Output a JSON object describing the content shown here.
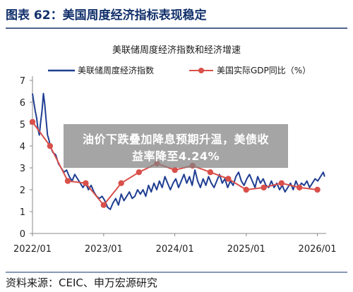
{
  "figure": {
    "title": "图表 62：美国周度经济指标表现稳定",
    "source": "资料来源：CEIC、申万宏源研究",
    "colors": {
      "title_bar": "#12306b",
      "line_wei": "#1f3e92",
      "line_gdp": "#d9504a",
      "axis": "#888888"
    }
  },
  "overlay": {
    "line1": "油价下跌叠加降息预期升温，美债收",
    "line2": "益率降至4.24%"
  },
  "chart_data": {
    "type": "line",
    "title": "美联储周度经济指数和经济增速",
    "xlabel": "",
    "ylabel": "",
    "xlim": [
      "2022-01-01",
      "2026-02-15"
    ],
    "ylim": [
      0,
      7
    ],
    "yticks": [
      0,
      1,
      2,
      3,
      4,
      5,
      6,
      7
    ],
    "xticks": [
      {
        "value": "2022-01-01",
        "label": "2022/01"
      },
      {
        "value": "2023-01-01",
        "label": "2023/01"
      },
      {
        "value": "2024-01-01",
        "label": "2024/01"
      },
      {
        "value": "2025-01-01",
        "label": "2025/01"
      },
      {
        "value": "2026-01-01",
        "label": "2026/01"
      }
    ],
    "grid": false,
    "legend_position": "top",
    "series": [
      {
        "name": "美联储周度经济指数",
        "style": "line",
        "color": "#1f3e92",
        "x": [
          "2022-01-01",
          "2022-01-08",
          "2022-01-15",
          "2022-01-22",
          "2022-01-29",
          "2022-02-05",
          "2022-02-12",
          "2022-02-19",
          "2022-02-26",
          "2022-03-05",
          "2022-03-12",
          "2022-03-19",
          "2022-03-26",
          "2022-04-02",
          "2022-04-16",
          "2022-04-30",
          "2022-05-14",
          "2022-05-28",
          "2022-06-11",
          "2022-06-25",
          "2022-07-09",
          "2022-07-23",
          "2022-08-06",
          "2022-08-20",
          "2022-09-03",
          "2022-09-17",
          "2022-10-01",
          "2022-10-15",
          "2022-10-29",
          "2022-11-12",
          "2022-11-26",
          "2022-12-10",
          "2022-12-24",
          "2023-01-07",
          "2023-01-21",
          "2023-02-04",
          "2023-02-18",
          "2023-03-04",
          "2023-03-18",
          "2023-04-01",
          "2023-04-15",
          "2023-04-29",
          "2023-05-13",
          "2023-05-27",
          "2023-06-10",
          "2023-06-24",
          "2023-07-08",
          "2023-07-22",
          "2023-08-05",
          "2023-08-19",
          "2023-09-02",
          "2023-09-16",
          "2023-09-30",
          "2023-10-14",
          "2023-10-28",
          "2023-11-11",
          "2023-11-25",
          "2023-12-09",
          "2023-12-23",
          "2024-01-06",
          "2024-01-20",
          "2024-02-03",
          "2024-02-17",
          "2024-03-02",
          "2024-03-16",
          "2024-03-30",
          "2024-04-13",
          "2024-04-27",
          "2024-05-11",
          "2024-05-25",
          "2024-06-08",
          "2024-06-22",
          "2024-07-06",
          "2024-07-20",
          "2024-08-03",
          "2024-08-17",
          "2024-08-31",
          "2024-09-14",
          "2024-09-28",
          "2024-10-12",
          "2024-10-26",
          "2024-11-09",
          "2024-11-23",
          "2024-12-07",
          "2024-12-21",
          "2025-01-04",
          "2025-01-18",
          "2025-02-01",
          "2025-02-15",
          "2025-03-01",
          "2025-03-15",
          "2025-03-29",
          "2025-04-12",
          "2025-04-26",
          "2025-05-10",
          "2025-05-24",
          "2025-06-07",
          "2025-06-21",
          "2025-07-05",
          "2025-07-19",
          "2025-08-02",
          "2025-08-16",
          "2025-08-30",
          "2025-09-13",
          "2025-09-27",
          "2025-10-11",
          "2025-10-25",
          "2025-11-08",
          "2025-11-22",
          "2025-12-06",
          "2025-12-20",
          "2026-01-03",
          "2026-01-17",
          "2026-01-31",
          "2026-02-07"
        ],
        "values": [
          6.4,
          6.0,
          5.6,
          5.3,
          4.8,
          4.5,
          5.1,
          5.6,
          6.4,
          5.9,
          5.2,
          4.5,
          4.3,
          4.0,
          3.7,
          3.6,
          3.2,
          3.0,
          2.8,
          2.9,
          2.6,
          2.4,
          2.7,
          2.5,
          2.3,
          2.1,
          2.3,
          2.0,
          2.2,
          1.9,
          1.7,
          1.6,
          1.7,
          1.5,
          1.2,
          1.1,
          1.4,
          1.6,
          1.3,
          1.8,
          1.5,
          1.7,
          1.9,
          1.6,
          1.7,
          2.0,
          1.8,
          2.0,
          1.7,
          2.2,
          1.9,
          2.3,
          2.0,
          2.4,
          2.1,
          2.6,
          2.3,
          2.0,
          2.3,
          2.5,
          2.1,
          2.4,
          2.7,
          2.3,
          2.6,
          2.2,
          2.9,
          2.4,
          2.1,
          2.5,
          2.2,
          2.6,
          2.3,
          2.1,
          2.4,
          2.7,
          2.3,
          2.5,
          2.1,
          2.4,
          2.2,
          2.6,
          2.8,
          2.4,
          2.2,
          2.5,
          2.7,
          2.4,
          2.1,
          2.6,
          2.3,
          2.5,
          2.2,
          2.1,
          2.4,
          2.1,
          2.3,
          2.0,
          2.2,
          1.9,
          2.1,
          2.3,
          2.0,
          2.4,
          2.1,
          2.3,
          2.2,
          2.4,
          2.1,
          2.3,
          2.5,
          2.4,
          2.6,
          2.8,
          2.6
        ]
      },
      {
        "name": "美国实际GDP同比（%）",
        "style": "line-marker",
        "color": "#d9504a",
        "x": [
          "2022-01-01",
          "2022-04-01",
          "2022-07-01",
          "2022-10-01",
          "2023-01-01",
          "2023-04-01",
          "2023-07-01",
          "2023-10-01",
          "2024-01-01",
          "2024-04-01",
          "2024-07-01",
          "2024-10-01",
          "2025-01-01",
          "2025-04-01",
          "2025-07-01",
          "2025-10-01",
          "2026-01-01"
        ],
        "values": [
          5.1,
          4.0,
          2.4,
          2.3,
          1.3,
          2.3,
          2.8,
          3.2,
          2.9,
          3.1,
          2.8,
          2.5,
          2.0,
          2.1,
          2.3,
          2.1,
          2.0
        ]
      }
    ]
  }
}
